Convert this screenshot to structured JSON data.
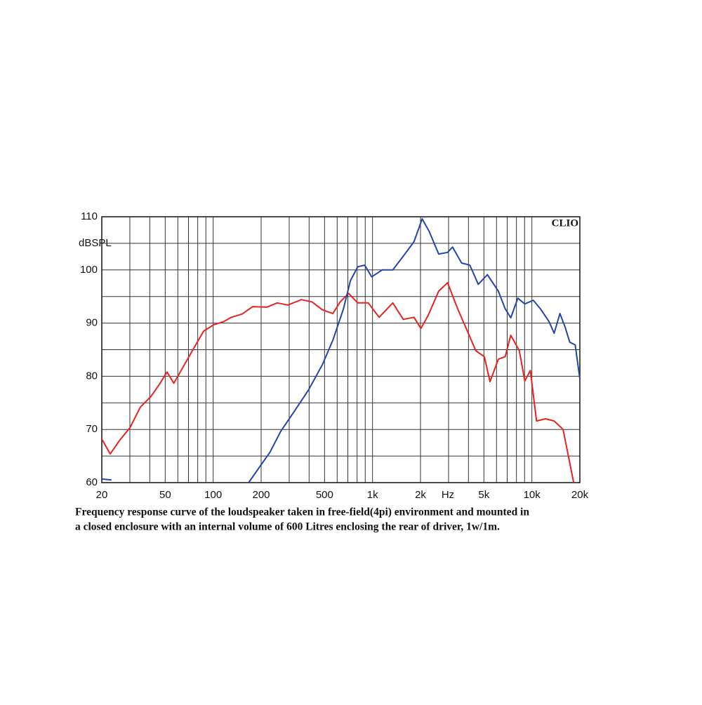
{
  "chart_data": {
    "type": "line",
    "y_label": "dBSPL",
    "x_label": "Hz",
    "watermark": "CLIO",
    "caption": [
      "Frequency response curve of the loudspeaker taken in free-field(4pi) environment and mounted in",
      "a closed enclosure  with an internal volume of 600 Litres enclosing the rear of driver, 1w/1m."
    ],
    "x_log": true,
    "grid": true,
    "xlim": [
      20,
      20000
    ],
    "ylim": [
      60,
      110
    ],
    "xticks": [
      20,
      50,
      100,
      200,
      500,
      {
        "value": 1000,
        "label": "1k"
      },
      {
        "value": 2000,
        "label": "2k"
      },
      {
        "value": 5000,
        "label": "5k"
      },
      {
        "value": 10000,
        "label": "10k"
      },
      {
        "value": 20000,
        "label": "20k"
      }
    ],
    "yticks": [
      60,
      70,
      80,
      90,
      100,
      110
    ],
    "x_minor_grid": [
      30,
      40,
      60,
      70,
      80,
      90,
      300,
      400,
      600,
      700,
      800,
      900,
      3000,
      4000,
      6000,
      7000,
      8000,
      9000
    ],
    "y_minor_grid": [
      65,
      75,
      85,
      95,
      105
    ],
    "series": [
      {
        "color": "#e8231f",
        "x": [
          20,
          22.6,
          25.8,
          30,
          34.9,
          40.7,
          46,
          51.3,
          56.6,
          64.1,
          74,
          87.1,
          101,
          117,
          130,
          152,
          177,
          217,
          252,
          294,
          358,
          417,
          484,
          564,
          627,
          708,
          808,
          940,
          1100,
          1340,
          1560,
          1820,
          2010,
          2230,
          2600,
          2960,
          3420,
          3900,
          4450,
          5030,
          5460,
          6160,
          6800,
          7370,
          8340,
          9030,
          9780,
          10700,
          12200,
          13800,
          15700,
          18300
        ],
        "values": [
          68.2,
          65.4,
          67.9,
          70.3,
          74.2,
          76.2,
          78.5,
          80.8,
          78.7,
          81.5,
          84.8,
          88.5,
          89.7,
          90.3,
          91.1,
          91.7,
          93.1,
          93,
          93.8,
          93.4,
          94.4,
          94,
          92.5,
          91.8,
          94,
          95.6,
          93.8,
          93.8,
          91.1,
          93.8,
          90.7,
          91.1,
          89,
          91.4,
          96,
          97.6,
          92.7,
          88.8,
          84.8,
          83.7,
          79,
          83.2,
          83.7,
          87.7,
          84.8,
          79.1,
          81.1,
          71.6,
          72,
          71.6,
          70,
          60
        ]
      },
      {
        "color": "#2346a8",
        "x": [
          20,
          23,
          24,
          167,
          196,
          227,
          265,
          326,
          398,
          485,
          564,
          657,
          727,
          808,
          893,
          988,
          1150,
          1340,
          1560,
          1820,
          2050,
          2270,
          2600,
          2960,
          3180,
          3620,
          4080,
          4610,
          5260,
          6160,
          6800,
          7370,
          8170,
          9030,
          10200,
          11300,
          12800,
          13800,
          15000,
          16100,
          17300,
          18700,
          20000
        ],
        "values": [
          60.7,
          60.5,
          null,
          60,
          63,
          65.7,
          69.6,
          73.6,
          77.5,
          82.2,
          86.8,
          92.7,
          98,
          100.6,
          100.9,
          98.7,
          100,
          100,
          102.6,
          105.3,
          109.6,
          107.2,
          103,
          103.3,
          104.3,
          101.3,
          100.9,
          97.3,
          99.1,
          96,
          92.7,
          91,
          94.7,
          93.6,
          94.3,
          92.7,
          90.3,
          88.1,
          91.8,
          89.4,
          86.4,
          85.9,
          79.5
        ]
      }
    ]
  }
}
